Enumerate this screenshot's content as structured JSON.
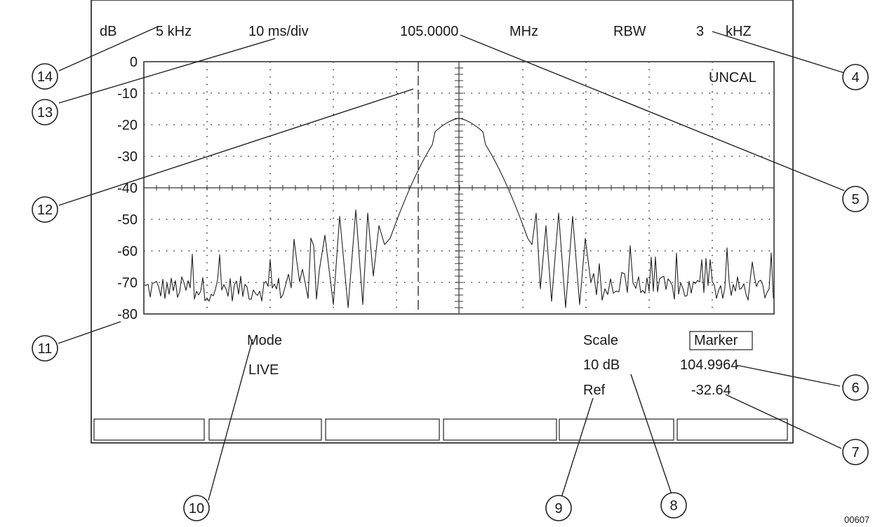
{
  "header": {
    "db_label": "dB",
    "span": "5  kHz",
    "sweep": "10 ms/div",
    "center_freq": "105.0000",
    "freq_unit": "MHz",
    "rbw_label": "RBW",
    "rbw_value": "3",
    "rbw_unit": "kHZ"
  },
  "uncal": "UNCAL",
  "y_axis": {
    "ticks": [
      "0",
      "-10",
      "-20",
      "-30",
      "-40",
      "-50",
      "-60",
      "-70",
      "-80"
    ],
    "values": [
      0,
      -10,
      -20,
      -30,
      -40,
      -50,
      -60,
      -70,
      -80
    ]
  },
  "mode": {
    "label": "Mode",
    "value": "LIVE"
  },
  "scale": {
    "label": "Scale",
    "value": "10  dB",
    "ref_label": "Ref"
  },
  "marker": {
    "label": "Marker",
    "freq": "104.9964",
    "level": "-32.64"
  },
  "softkeys": [
    "",
    "",
    "",
    "",
    "",
    ""
  ],
  "callouts": [
    "14",
    "13",
    "12",
    "11",
    "10",
    "9",
    "8",
    "7",
    "6",
    "5",
    "4"
  ],
  "figure_id": "00607",
  "colors": {
    "ink": "#1a1a1a",
    "frame": "#333333",
    "grid": "#444444"
  }
}
